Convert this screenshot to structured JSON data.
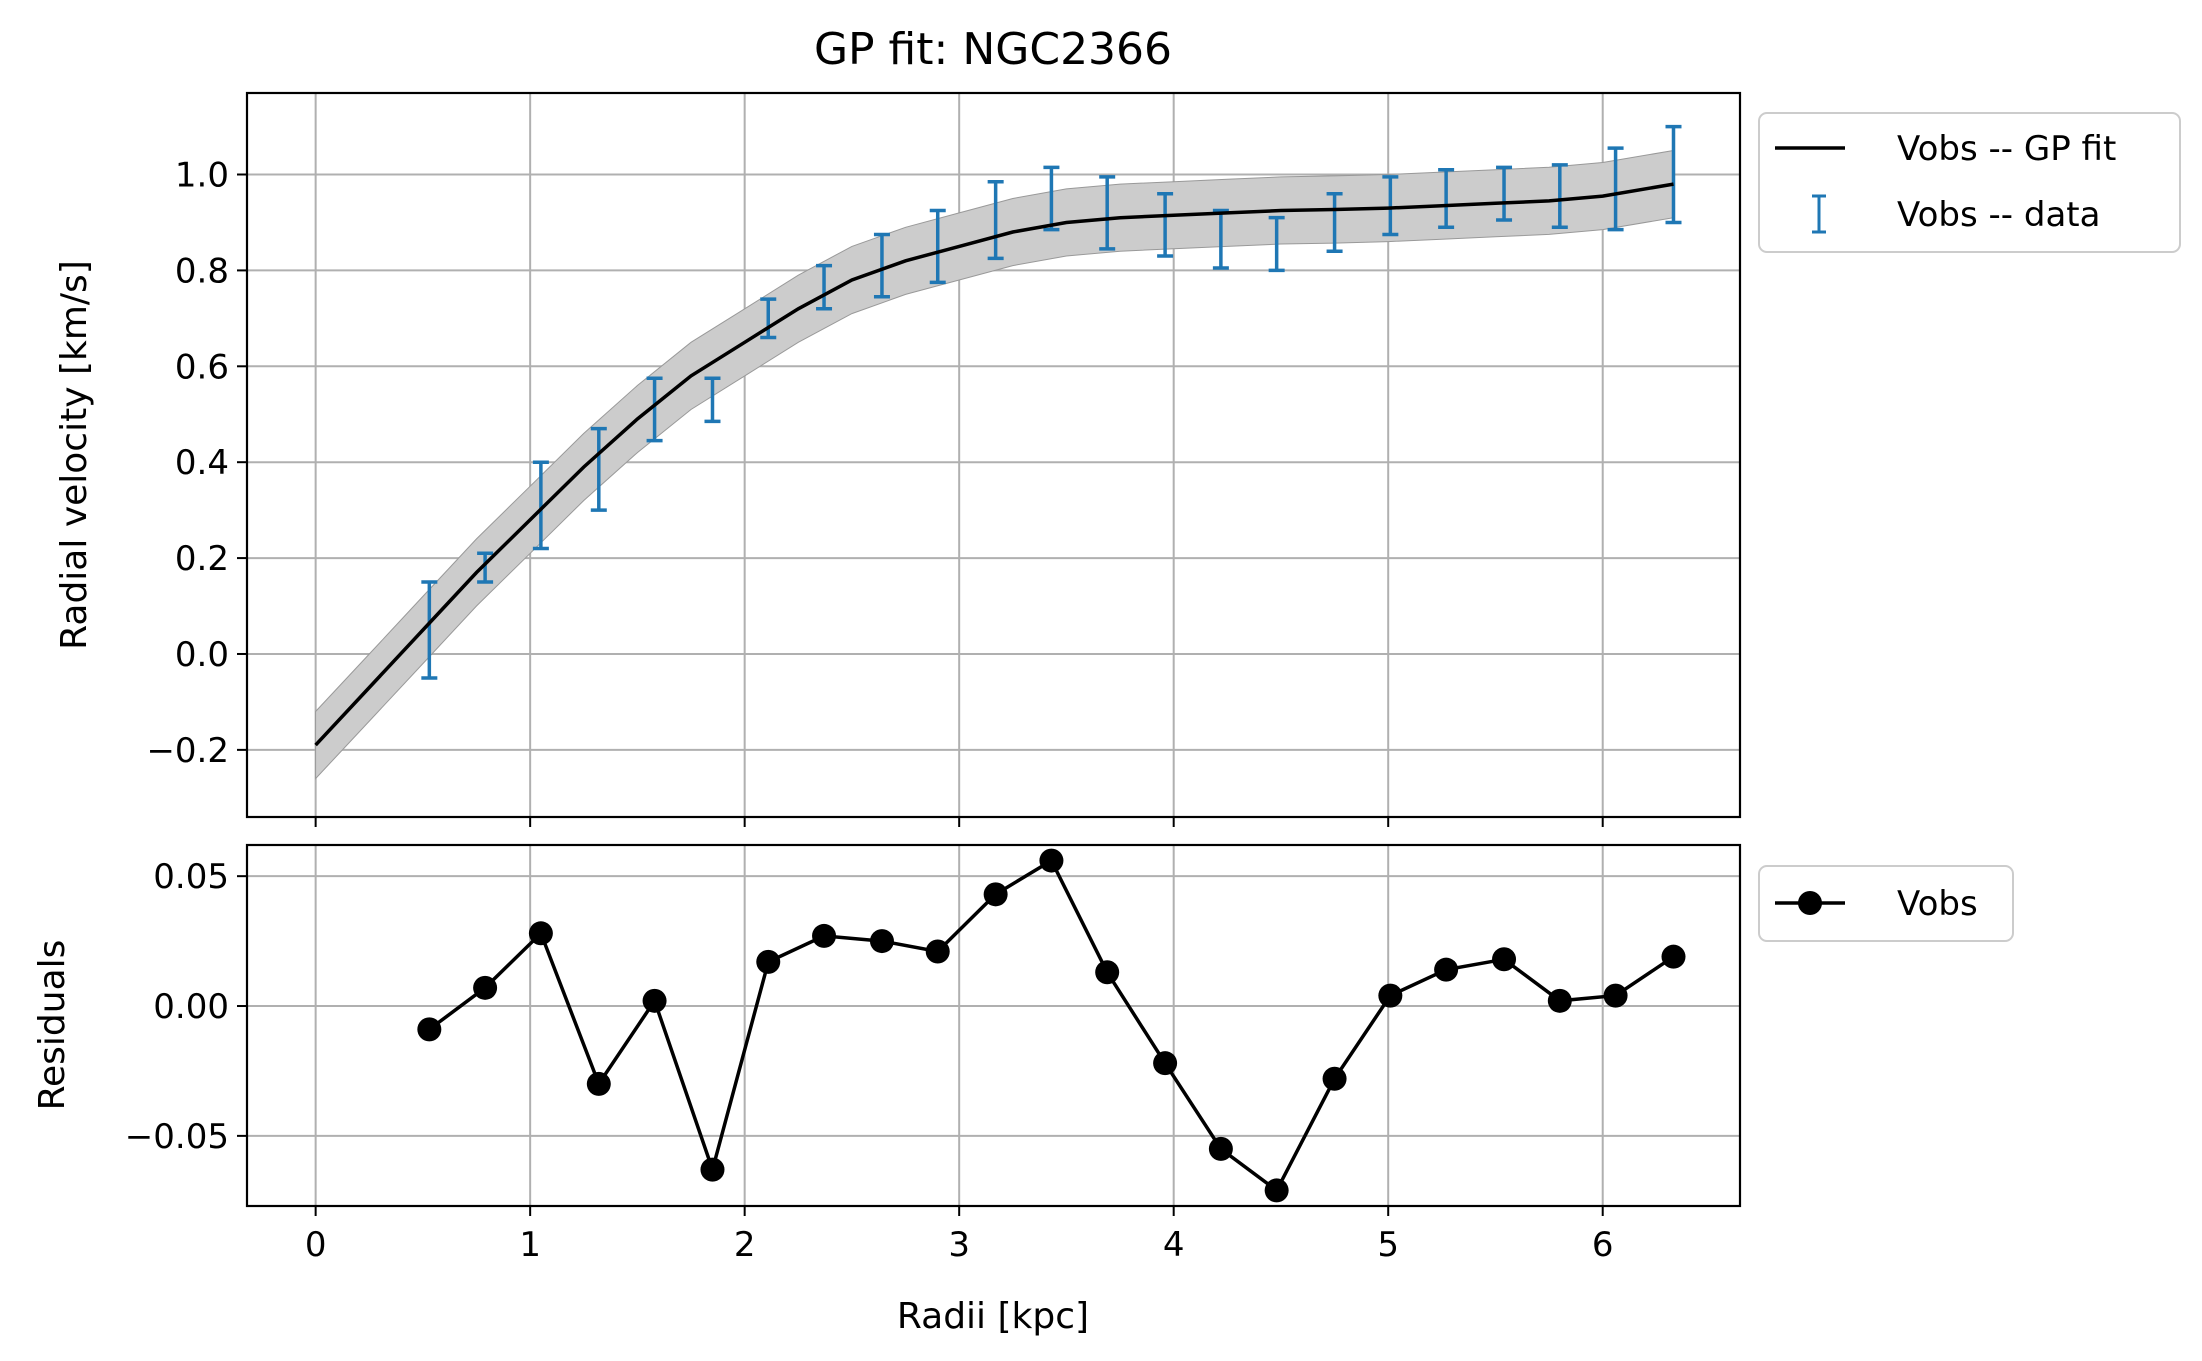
{
  "chart_data": [
    {
      "type": "line",
      "title": "GP fit: NGC2366",
      "xlabel": "",
      "ylabel": "Radial velocity [km/s]",
      "xlim": [
        -0.32,
        6.64
      ],
      "ylim": [
        -0.34,
        1.17
      ],
      "xticks": [
        0,
        1,
        2,
        3,
        4,
        5,
        6
      ],
      "xtick_labels": [
        "",
        "",
        "",
        "",
        "",
        "",
        ""
      ],
      "yticks": [
        -0.2,
        0.0,
        0.2,
        0.4,
        0.6,
        0.8,
        1.0
      ],
      "ytick_labels": [
        "−0.2",
        "0.0",
        "0.2",
        "0.4",
        "0.6",
        "0.8",
        "1.0"
      ],
      "grid": true,
      "legend_placement": "outside upper-right",
      "series": [
        {
          "name": "Vobs -- GP fit",
          "kind": "line",
          "color": "#000000",
          "x": [
            0.0,
            0.25,
            0.5,
            0.75,
            1.0,
            1.25,
            1.5,
            1.75,
            2.0,
            2.25,
            2.5,
            2.75,
            3.0,
            3.25,
            3.5,
            3.75,
            4.0,
            4.25,
            4.5,
            4.75,
            5.0,
            5.25,
            5.5,
            5.75,
            6.0,
            6.33
          ],
          "y": [
            -0.19,
            -0.07,
            0.05,
            0.17,
            0.28,
            0.39,
            0.49,
            0.58,
            0.65,
            0.72,
            0.78,
            0.82,
            0.85,
            0.88,
            0.9,
            0.91,
            0.915,
            0.92,
            0.925,
            0.927,
            0.93,
            0.935,
            0.94,
            0.945,
            0.955,
            0.98
          ],
          "band_color": "#cccccc",
          "band_halfwidth": 0.07
        },
        {
          "name": "Vobs -- data",
          "kind": "errorbar",
          "color": "#1f77b4",
          "x": [
            0.53,
            0.79,
            1.05,
            1.32,
            1.58,
            1.85,
            2.11,
            2.37,
            2.64,
            2.9,
            3.17,
            3.43,
            3.69,
            3.96,
            4.22,
            4.48,
            4.75,
            5.01,
            5.27,
            5.54,
            5.8,
            6.06,
            6.33
          ],
          "y": [
            0.05,
            0.18,
            0.31,
            0.385,
            0.51,
            0.53,
            0.7,
            0.765,
            0.81,
            0.85,
            0.905,
            0.95,
            0.92,
            0.895,
            0.865,
            0.855,
            0.9,
            0.935,
            0.95,
            0.96,
            0.955,
            0.97,
            1.0
          ],
          "yerr": [
            0.1,
            0.03,
            0.09,
            0.085,
            0.065,
            0.045,
            0.04,
            0.045,
            0.065,
            0.075,
            0.08,
            0.065,
            0.075,
            0.065,
            0.06,
            0.055,
            0.06,
            0.06,
            0.06,
            0.055,
            0.065,
            0.085,
            0.1
          ]
        }
      ]
    },
    {
      "type": "line",
      "title": "",
      "xlabel": "Radii [kpc]",
      "ylabel": "Residuals",
      "xlim": [
        -0.32,
        6.64
      ],
      "ylim": [
        -0.077,
        0.062
      ],
      "xticks": [
        0,
        1,
        2,
        3,
        4,
        5,
        6
      ],
      "xtick_labels": [
        "0",
        "1",
        "2",
        "3",
        "4",
        "5",
        "6"
      ],
      "yticks": [
        -0.05,
        0.0,
        0.05
      ],
      "ytick_labels": [
        "−0.05",
        "0.00",
        "0.05"
      ],
      "grid": true,
      "legend_placement": "outside upper-right",
      "series": [
        {
          "name": "Vobs",
          "kind": "line-marker",
          "color": "#000000",
          "x": [
            0.53,
            0.79,
            1.05,
            1.32,
            1.58,
            1.85,
            2.11,
            2.37,
            2.64,
            2.9,
            3.17,
            3.43,
            3.69,
            3.96,
            4.22,
            4.48,
            4.75,
            5.01,
            5.27,
            5.54,
            5.8,
            6.06,
            6.33
          ],
          "y": [
            -0.009,
            0.007,
            0.028,
            -0.03,
            0.002,
            -0.063,
            0.017,
            0.027,
            0.025,
            0.021,
            0.043,
            0.056,
            0.013,
            -0.022,
            -0.055,
            -0.071,
            -0.028,
            0.004,
            0.014,
            0.018,
            0.002,
            0.004,
            0.019
          ]
        }
      ]
    }
  ]
}
